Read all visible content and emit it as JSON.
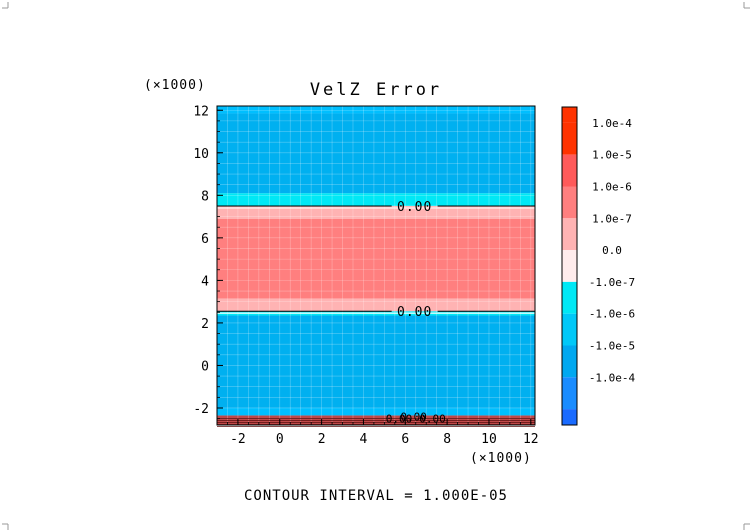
{
  "chart_data": {
    "type": "heatmap",
    "title": "VelZ Error",
    "x_multiplier_label": "(×1000)",
    "y_multiplier_label": "(×1000)",
    "xlim": [
      -3,
      12.2
    ],
    "ylim": [
      -2.8,
      12.2
    ],
    "x_ticks": [
      -2,
      0,
      2,
      4,
      6,
      8,
      10,
      12
    ],
    "y_ticks": [
      -2,
      0,
      2,
      4,
      6,
      8,
      10,
      12
    ],
    "x_tick_labels": [
      "-2",
      "0",
      "2",
      "4",
      "6",
      "8",
      "10",
      "12"
    ],
    "y_tick_labels": [
      "-2",
      "0",
      "2",
      "4",
      "6",
      "8",
      "10",
      "12"
    ],
    "grid": true,
    "bands": [
      {
        "y0": -2.8,
        "y1": -2.35,
        "color": "#c04848"
      },
      {
        "y0": -2.35,
        "y1": -2.0,
        "color": "#00bfff"
      },
      {
        "y0": -2.0,
        "y1": 2.35,
        "color": "#00b0f0"
      },
      {
        "y0": 2.35,
        "y1": 2.55,
        "color": "#00e8f5"
      },
      {
        "y0": 2.55,
        "y1": 3.15,
        "color": "#ffb3b3"
      },
      {
        "y0": 3.15,
        "y1": 6.9,
        "color": "#ff7f7f"
      },
      {
        "y0": 6.9,
        "y1": 7.5,
        "color": "#ffb3b3"
      },
      {
        "y0": 7.5,
        "y1": 8.1,
        "color": "#00e8f5"
      },
      {
        "y0": 8.1,
        "y1": 11.85,
        "color": "#00b0f0"
      },
      {
        "y0": 11.85,
        "y1": 12.2,
        "color": "#00bfff"
      }
    ],
    "contour_lines": [
      {
        "y": 7.5,
        "label": "0.00",
        "label_x": 6.4
      },
      {
        "y": 2.55,
        "label": "0.00",
        "label_x": 6.4
      }
    ],
    "bottom_contour_labels": [
      "0.00",
      "0.00",
      "0.00"
    ],
    "colorbar": {
      "levels": [
        {
          "label": "1.0e-4",
          "color": "#ff3300"
        },
        {
          "label": "1.0e-5",
          "color": "#ff5a5a"
        },
        {
          "label": "1.0e-6",
          "color": "#ff7f7f"
        },
        {
          "label": "1.0e-7",
          "color": "#ffb3b3"
        },
        {
          "label": "0.0",
          "color": "#ffecec"
        },
        {
          "label": "-1.0e-7",
          "color": "#00e8f5"
        },
        {
          "label": "-1.0e-6",
          "color": "#00c8f8"
        },
        {
          "label": "-1.0e-5",
          "color": "#00a8f0"
        },
        {
          "label": "-1.0e-4",
          "color": "#1a8cff"
        }
      ],
      "top_color": "#ff3300",
      "bottom_color": "#1a6bff"
    }
  },
  "footer": {
    "contour_interval": "CONTOUR INTERVAL = 1.000E-05"
  }
}
